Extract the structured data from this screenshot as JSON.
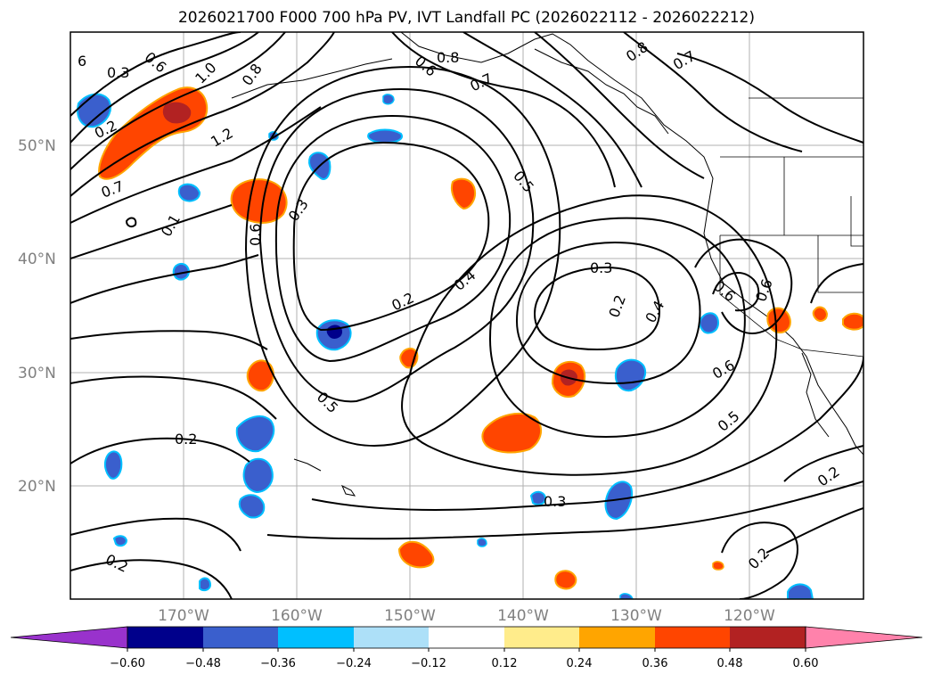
{
  "title": "2026021700 F000 700 hPa PV, IVT Landfall PC (2026022112 - 2026022212)",
  "lat_labels": [
    "50°N",
    "40°N",
    "30°N",
    "20°N"
  ],
  "lon_labels": [
    "170°W",
    "160°W",
    "150°W",
    "140°W",
    "130°W",
    "120°W"
  ],
  "contour_labels": [
    "6",
    "0.3",
    "0.2",
    "1.0",
    "1.2",
    "0.7",
    "0.1",
    "0.8",
    "0.6",
    "0.6",
    "0.3",
    "0.8",
    "0.7",
    "0.6",
    "0.8",
    "0.7",
    "0.5",
    "0.2",
    "0.4",
    "0.5",
    "0.3",
    "0.2",
    "0.4",
    "0.6",
    "0.6",
    "0.6",
    "0.5",
    "0.2",
    "0.3",
    "0.2",
    "0.2",
    "0.2"
  ],
  "colorbar": {
    "ticks": [
      "−0.60",
      "−0.48",
      "−0.36",
      "−0.24",
      "−0.12",
      "0.12",
      "0.24",
      "0.36",
      "0.48",
      "0.60"
    ],
    "colors": [
      "#9932CC",
      "#00008B",
      "#3A5FCD",
      "#00BFFF",
      "#ADE0F8",
      "#FFFFFF",
      "#FFEC8B",
      "#FFA500",
      "#FF4500",
      "#B22222",
      "#FF82AB"
    ]
  }
}
